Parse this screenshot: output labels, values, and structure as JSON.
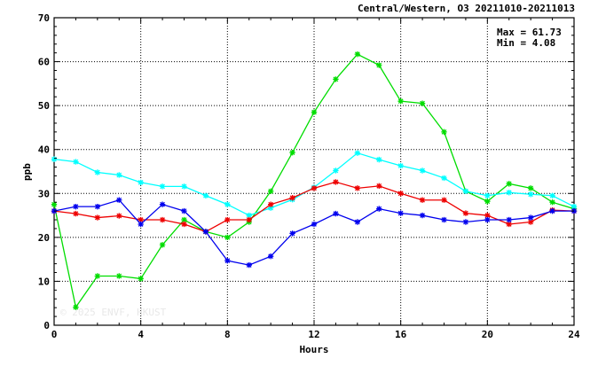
{
  "chart_data": {
    "type": "line",
    "title": "Central/Western, O3 20211010-20211013",
    "xlabel": "Hours",
    "ylabel": "ppb",
    "xlim": [
      0,
      24
    ],
    "ylim": [
      0,
      70
    ],
    "x_ticks": [
      0,
      4,
      8,
      12,
      16,
      20,
      24
    ],
    "y_ticks": [
      0,
      10,
      20,
      30,
      40,
      50,
      60,
      70
    ],
    "grid": true,
    "stats": {
      "max_label": "Max = 61.73",
      "min_label": "Min =  4.08"
    },
    "watermark": "© 2025 ENVF, HKUST",
    "x": [
      0,
      1,
      2,
      3,
      4,
      5,
      6,
      7,
      8,
      9,
      10,
      11,
      12,
      13,
      14,
      15,
      16,
      17,
      18,
      19,
      20,
      21,
      22,
      23,
      24
    ],
    "series": [
      {
        "color": "#00dd00",
        "values": [
          27.5,
          4.1,
          11.2,
          11.2,
          10.6,
          18.3,
          24.0,
          21.3,
          20.0,
          23.5,
          30.5,
          39.3,
          48.5,
          56.0,
          61.7,
          59.2,
          51.0,
          50.5,
          44.0,
          30.5,
          28.2,
          32.2,
          31.2,
          28.0,
          26.5
        ]
      },
      {
        "color": "#00ffff",
        "values": [
          37.8,
          37.2,
          34.8,
          34.2,
          32.5,
          31.6,
          31.6,
          29.5,
          27.5,
          25.0,
          26.7,
          28.6,
          31.4,
          35.2,
          39.2,
          37.7,
          36.3,
          35.2,
          33.5,
          30.5,
          29.5,
          30.2,
          29.8,
          29.5,
          27.0
        ]
      },
      {
        "color": "#ee0000",
        "values": [
          26.0,
          25.4,
          24.5,
          24.9,
          24.0,
          24.0,
          23.0,
          21.3,
          24.0,
          24.0,
          27.5,
          29.0,
          31.2,
          32.6,
          31.2,
          31.7,
          30.0,
          28.5,
          28.5,
          25.5,
          25.0,
          23.0,
          23.5,
          26.2,
          26.0
        ]
      },
      {
        "color": "#0000ee",
        "values": [
          26.0,
          27.0,
          27.0,
          28.5,
          23.0,
          27.5,
          26.0,
          21.3,
          14.7,
          13.7,
          15.7,
          20.9,
          23.0,
          25.4,
          23.5,
          26.5,
          25.5,
          25.0,
          24.0,
          23.5,
          24.0,
          24.0,
          24.5,
          26.0,
          26.0
        ]
      }
    ]
  }
}
